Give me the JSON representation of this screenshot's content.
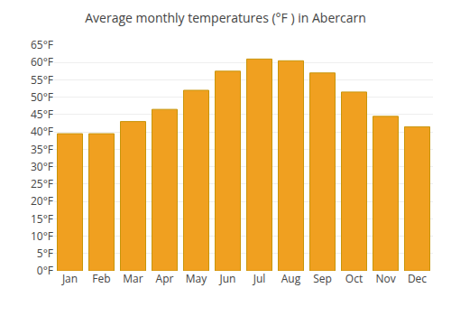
{
  "chart_data": {
    "type": "bar",
    "title": "Average monthly temperatures (°F ) in Abercarn",
    "categories": [
      "Jan",
      "Feb",
      "Mar",
      "Apr",
      "May",
      "Jun",
      "Jul",
      "Aug",
      "Sep",
      "Oct",
      "Nov",
      "Dec"
    ],
    "values": [
      39.5,
      39.5,
      43.0,
      46.5,
      52.0,
      57.5,
      61.0,
      60.5,
      57.0,
      51.5,
      44.5,
      41.5
    ],
    "color": "#F0A020",
    "ylim": [
      0,
      65
    ],
    "yticks": [
      {
        "value": 0,
        "label": "0°F"
      },
      {
        "value": 5,
        "label": "5°F"
      },
      {
        "value": 10,
        "label": "10°F"
      },
      {
        "value": 15,
        "label": "15°F"
      },
      {
        "value": 20,
        "label": "20°F"
      },
      {
        "value": 25,
        "label": "25°F"
      },
      {
        "value": 30,
        "label": "30°F"
      },
      {
        "value": 35,
        "label": "35°F"
      },
      {
        "value": 40,
        "label": "40°F"
      },
      {
        "value": 45,
        "label": "45°F"
      },
      {
        "value": 50,
        "label": "50°F"
      },
      {
        "value": 55,
        "label": "55°F"
      },
      {
        "value": 60,
        "label": "60°F"
      },
      {
        "value": 65,
        "label": "65°F"
      }
    ],
    "grid": true
  }
}
